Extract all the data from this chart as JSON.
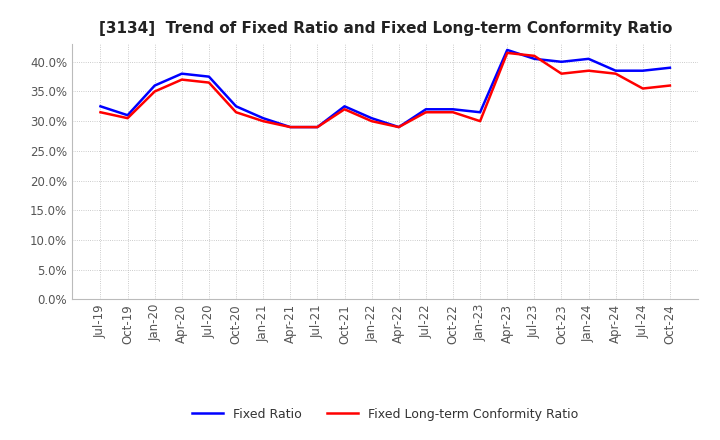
{
  "title": "[3134]  Trend of Fixed Ratio and Fixed Long-term Conformity Ratio",
  "xlabel_labels": [
    "Jul-19",
    "Oct-19",
    "Jan-20",
    "Apr-20",
    "Jul-20",
    "Oct-20",
    "Jan-21",
    "Apr-21",
    "Jul-21",
    "Oct-21",
    "Jan-22",
    "Apr-22",
    "Jul-22",
    "Oct-22",
    "Jan-23",
    "Apr-23",
    "Jul-23",
    "Oct-23",
    "Jan-24",
    "Apr-24",
    "Jul-24",
    "Oct-24"
  ],
  "fixed_ratio": [
    32.5,
    31.0,
    36.0,
    38.0,
    37.5,
    32.5,
    30.5,
    29.0,
    29.0,
    32.5,
    30.5,
    29.0,
    32.0,
    32.0,
    31.5,
    42.0,
    40.5,
    40.0,
    40.5,
    38.5,
    38.5,
    39.0
  ],
  "fixed_lt_ratio": [
    31.5,
    30.5,
    35.0,
    37.0,
    36.5,
    31.5,
    30.0,
    29.0,
    29.0,
    32.0,
    30.0,
    29.0,
    31.5,
    31.5,
    30.0,
    41.5,
    41.0,
    38.0,
    38.5,
    38.0,
    35.5,
    36.0
  ],
  "fixed_ratio_color": "#0000FF",
  "fixed_lt_ratio_color": "#FF0000",
  "ylim": [
    0,
    43
  ],
  "yticks": [
    0,
    5.0,
    10.0,
    15.0,
    20.0,
    25.0,
    30.0,
    35.0,
    40.0
  ],
  "background_color": "#FFFFFF",
  "plot_bg_color": "#FFFFFF",
  "grid_color": "#BBBBBB",
  "legend_fixed_ratio": "Fixed Ratio",
  "legend_fixed_lt_ratio": "Fixed Long-term Conformity Ratio",
  "title_fontsize": 11,
  "tick_fontsize": 8.5,
  "legend_fontsize": 9
}
